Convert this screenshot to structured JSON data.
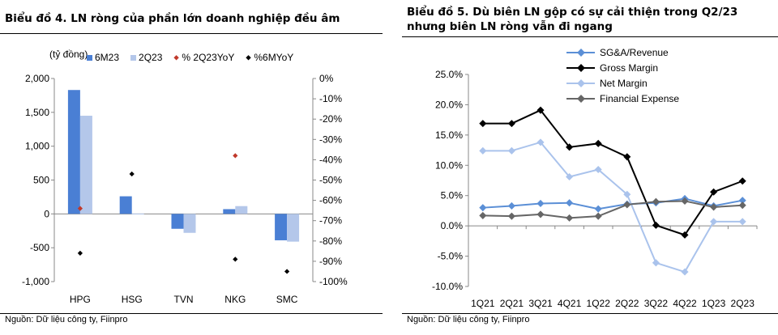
{
  "charts": [
    {
      "title": "Biểu đồ 4. LN ròng của phần lớn doanh nghiệp đều âm",
      "source": "Nguồn:    Dữ liệu công ty, Fiinpro",
      "unit_label": "(tỷ đồng)",
      "colors": {
        "6M23": "#4a7fd4",
        "2Q23": "#b4c7ea",
        "% 2Q23YoY": "#c0392b",
        "%6MYoY": "#000000"
      }
    },
    {
      "title_line1": "Biểu đồ 5. Dù biên LN gộp có sự cải thiện trong Q2/23",
      "title_line2": "nhưng biên LN ròng vẫn đi ngang",
      "source": "Nguồn:    Dữ liệu công ty, Fiinpro",
      "colors": {
        "SG&A/Revenue": "#5b8fd6",
        "Gross Margin": "#000000",
        "Net Margin": "#aac3ec",
        "Financial Expense": "#666666"
      }
    }
  ],
  "chart_data": [
    {
      "type": "bar",
      "categories": [
        "HPG",
        "HSG",
        "TVN",
        "NKG",
        "SMC"
      ],
      "ylim": [
        -1000,
        2000
      ],
      "yticks": [
        "2,000",
        "1,500",
        "1,000",
        "500",
        "0",
        "-500",
        "-1,000"
      ],
      "y2lim": [
        -100,
        0
      ],
      "y2ticks": [
        "0%",
        "-10%",
        "-20%",
        "-30%",
        "-40%",
        "-50%",
        "-60%",
        "-70%",
        "-80%",
        "-90%",
        "-100%"
      ],
      "legend_position": "top",
      "series": [
        {
          "name": "6M23",
          "kind": "bar",
          "axis": "left",
          "values": [
            1830,
            260,
            -220,
            70,
            -390
          ]
        },
        {
          "name": "2Q23",
          "kind": "bar",
          "axis": "right",
          "axis_note": "left",
          "values": [
            1450,
            5,
            -280,
            115,
            -410
          ]
        },
        {
          "name": "% 2Q23YoY",
          "kind": "point",
          "axis": "right",
          "values": [
            -64,
            null,
            null,
            -38,
            null
          ]
        },
        {
          "name": "%6MYoY",
          "kind": "point",
          "axis": "right",
          "values": [
            -86,
            -47,
            null,
            -89,
            -95
          ]
        }
      ]
    },
    {
      "type": "line",
      "categories": [
        "1Q21",
        "2Q21",
        "3Q21",
        "4Q21",
        "1Q22",
        "2Q22",
        "3Q22",
        "4Q22",
        "1Q23",
        "2Q23"
      ],
      "ylim": [
        -10,
        25
      ],
      "yticks": [
        "25.0%",
        "20.0%",
        "15.0%",
        "10.0%",
        "5.0%",
        "0.0%",
        "-5.0%",
        "-10.0%"
      ],
      "legend_position": "top",
      "series": [
        {
          "name": "SG&A/Revenue",
          "values": [
            3.0,
            3.3,
            3.7,
            3.8,
            2.8,
            3.6,
            3.8,
            4.5,
            3.3,
            4.2
          ]
        },
        {
          "name": "Gross Margin",
          "values": [
            16.9,
            16.9,
            19.1,
            13.0,
            13.6,
            11.4,
            0.1,
            -1.5,
            5.6,
            7.4
          ]
        },
        {
          "name": "Net Margin",
          "values": [
            12.4,
            12.4,
            13.8,
            8.1,
            9.3,
            5.2,
            -6.1,
            -7.6,
            0.7,
            0.7
          ]
        },
        {
          "name": "Financial Expense",
          "values": [
            1.7,
            1.6,
            1.9,
            1.3,
            1.6,
            3.5,
            4.0,
            4.1,
            3.1,
            3.4
          ]
        }
      ]
    }
  ]
}
